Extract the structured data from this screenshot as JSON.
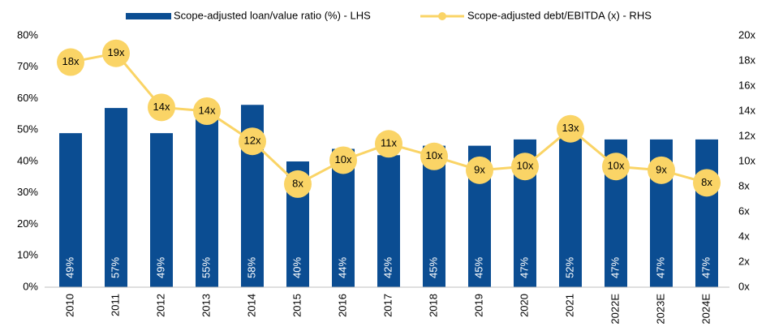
{
  "chart_data": {
    "type": "bar_line",
    "categories": [
      "2010",
      "2011",
      "2012",
      "2013",
      "2014",
      "2015",
      "2016",
      "2017",
      "2018",
      "2019",
      "2020",
      "2021",
      "2022E",
      "2023E",
      "2024E"
    ],
    "series": [
      {
        "name": "Scope-adjusted loan/value ratio (%) - LHS",
        "type": "bar",
        "color": "#0b4d92",
        "values": [
          49,
          57,
          49,
          55,
          58,
          40,
          44,
          42,
          45,
          45,
          47,
          52,
          47,
          47,
          47
        ],
        "value_labels": [
          "49%",
          "57%",
          "49%",
          "55%",
          "58%",
          "40%",
          "44%",
          "42%",
          "45%",
          "45%",
          "47%",
          "52%",
          "47%",
          "47%",
          "47%"
        ]
      },
      {
        "name": "Scope-adjusted debt/EBITDA (x) - RHS",
        "type": "line",
        "axis": "y2",
        "color": "#fad466",
        "values": [
          17.9,
          18.6,
          14.3,
          14.0,
          11.6,
          8.2,
          10.1,
          11.4,
          10.4,
          9.3,
          9.6,
          12.6,
          9.6,
          9.3,
          8.3
        ],
        "value_labels": [
          "18x",
          "19x",
          "14x",
          "14x",
          "12x",
          "8x",
          "10x",
          "11x",
          "10x",
          "9x",
          "10x",
          "13x",
          "10x",
          "9x",
          "8x"
        ]
      }
    ],
    "ylim": [
      0,
      80
    ],
    "yticks": [
      {
        "value": 0,
        "label": "0%"
      },
      {
        "value": 10,
        "label": "10%"
      },
      {
        "value": 20,
        "label": "20%"
      },
      {
        "value": 30,
        "label": "30%"
      },
      {
        "value": 40,
        "label": "40%"
      },
      {
        "value": 50,
        "label": "50%"
      },
      {
        "value": 60,
        "label": "60%"
      },
      {
        "value": 70,
        "label": "70%"
      },
      {
        "value": 80,
        "label": "80%"
      }
    ],
    "y2lim": [
      0,
      20
    ],
    "y2ticks": [
      {
        "value": 0,
        "label": "0x"
      },
      {
        "value": 2,
        "label": "2x"
      },
      {
        "value": 4,
        "label": "4x"
      },
      {
        "value": 6,
        "label": "6x"
      },
      {
        "value": 8,
        "label": "8x"
      },
      {
        "value": 10,
        "label": "10x"
      },
      {
        "value": 12,
        "label": "12x"
      },
      {
        "value": 14,
        "label": "14x"
      },
      {
        "value": 16,
        "label": "16x"
      },
      {
        "value": 18,
        "label": "18x"
      },
      {
        "value": 20,
        "label": "20x"
      }
    ],
    "legend": "top"
  }
}
